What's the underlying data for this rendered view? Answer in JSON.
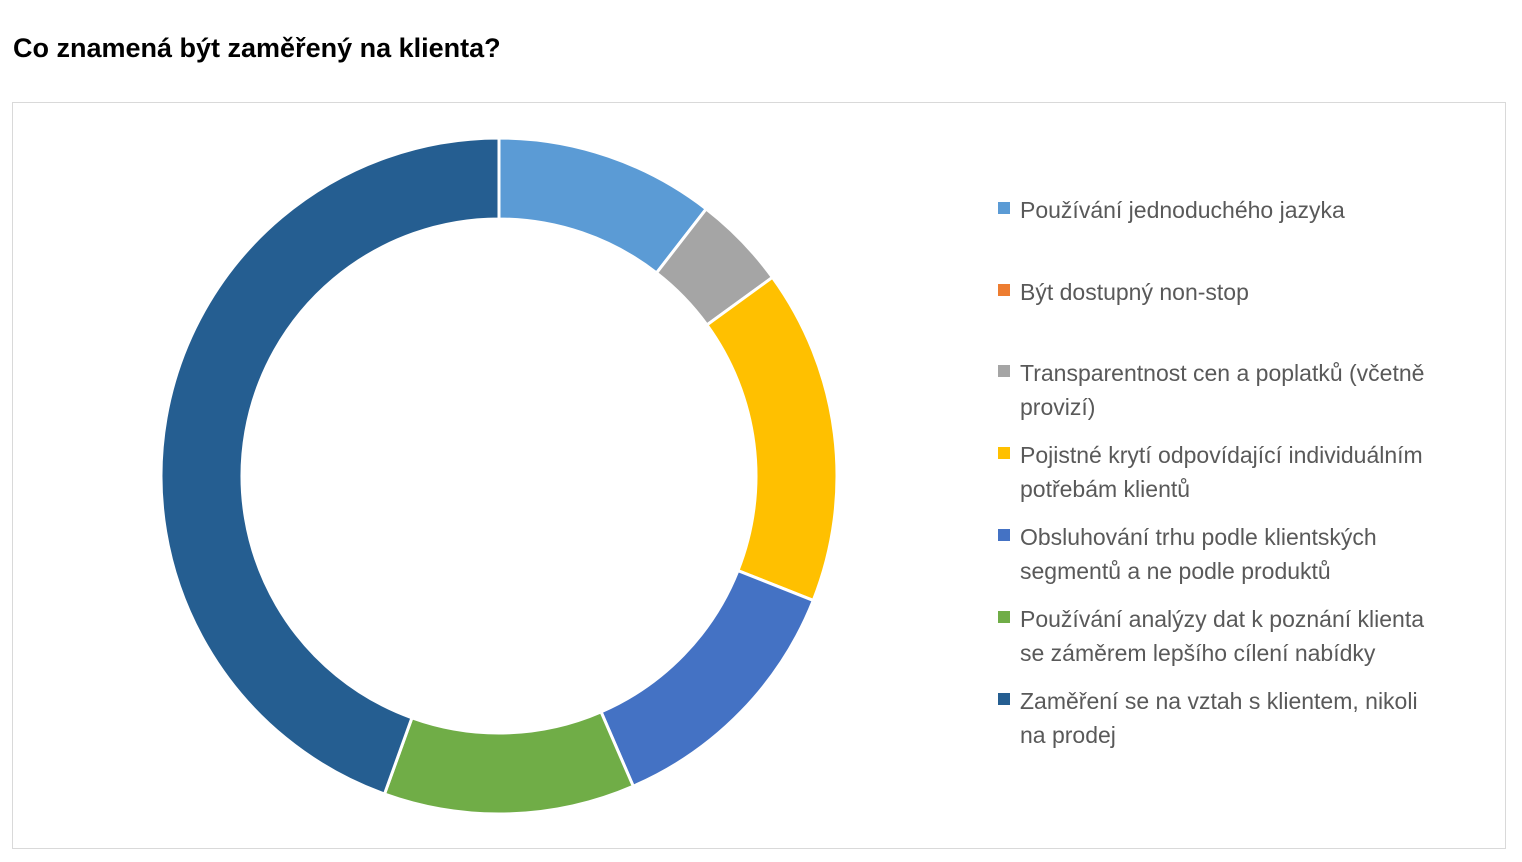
{
  "title": "Co znamená být zaměřený na klienta?",
  "chart_data": {
    "type": "pie",
    "donut": true,
    "title": "Co znamená být zaměřený na klienta?",
    "legend_position": "right",
    "categories": [
      "Používání jednoduchého jazyka",
      "Být dostupný non-stop",
      "Transparentnost cen a poplatků (včetně provizí)",
      "Pojistné krytí odpovídající individuálním potřebám klientů",
      "Obsluhování trhu podle klientských segmentů a ne podle produktů",
      "Používání analýzy dat k poznání klienta se záměrem lepšího cílení nabídky",
      "Zaměření se na vztah s klientem, nikoli na prodej"
    ],
    "values": [
      10.5,
      0,
      4.5,
      16,
      12.5,
      12,
      44.5
    ],
    "colors": [
      "#5b9bd5",
      "#ed7d31",
      "#a5a5a5",
      "#ffc000",
      "#4472c4",
      "#70ad47",
      "#255e91"
    ]
  },
  "legend": {
    "items": [
      {
        "label_lines": [
          "Používání jednoduchého jazyka"
        ],
        "color": "#5b9bd5"
      },
      {
        "label_lines": [
          "Být dostupný non-stop"
        ],
        "color": "#ed7d31"
      },
      {
        "label_lines": [
          "Transparentnost cen a poplatků (včetně",
          "provizí)"
        ],
        "color": "#a5a5a5"
      },
      {
        "label_lines": [
          "Pojistné krytí odpovídající individuálním",
          "potřebám klientů"
        ],
        "color": "#ffc000"
      },
      {
        "label_lines": [
          "Obsluhování trhu podle klientských",
          "segmentů a ne podle produktů"
        ],
        "color": "#4472c4"
      },
      {
        "label_lines": [
          "Používání analýzy dat k poznání klienta",
          "se záměrem lepšího cílení nabídky"
        ],
        "color": "#70ad47"
      },
      {
        "label_lines": [
          "Zaměření se na vztah s klientem, nikoli",
          "na prodej"
        ],
        "color": "#255e91"
      }
    ]
  }
}
